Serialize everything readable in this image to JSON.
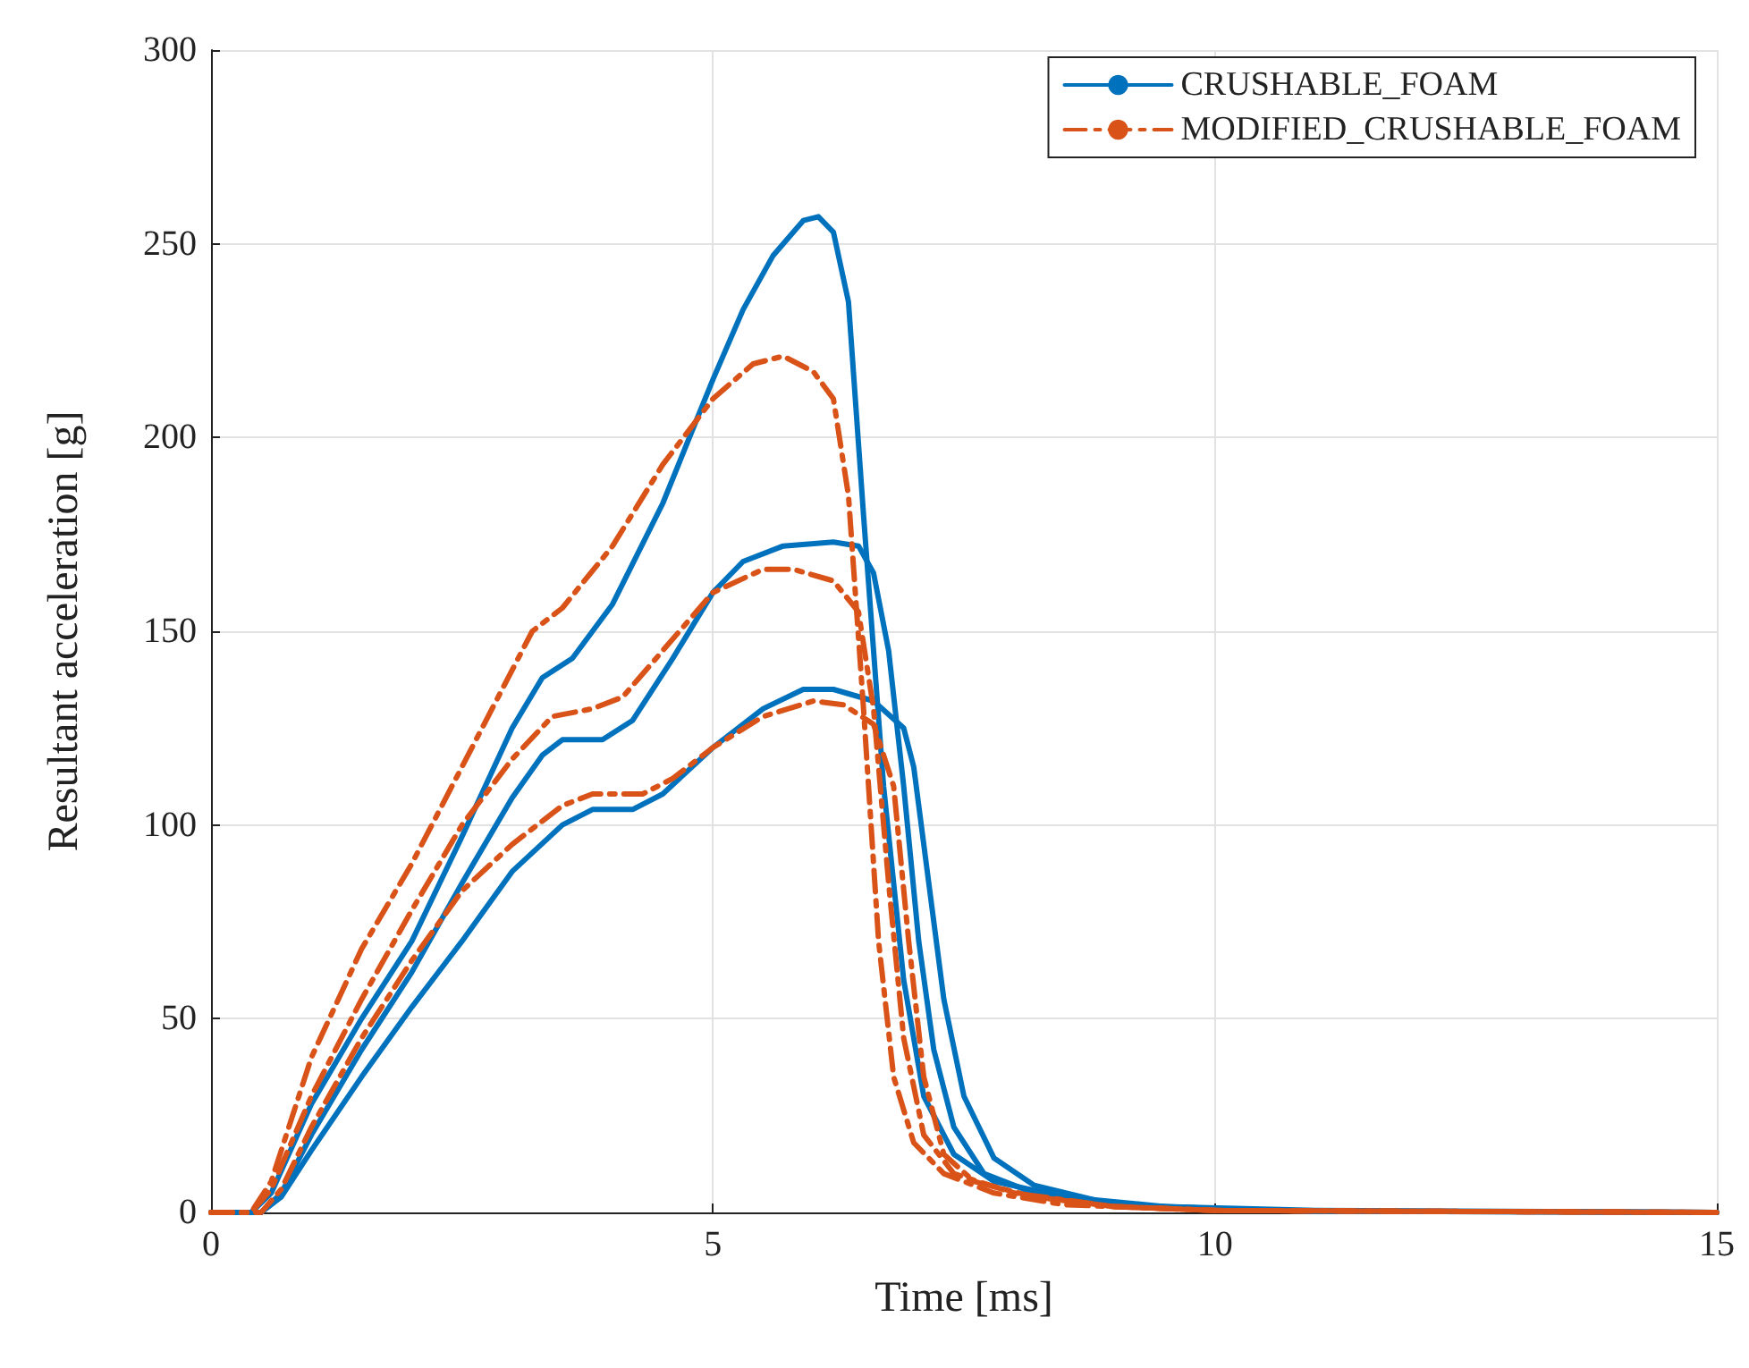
{
  "chart_data": {
    "type": "line",
    "xlabel": "Time [ms]",
    "ylabel": "Resultant acceleration [g]",
    "xlim": [
      0,
      15
    ],
    "xticks": [
      0,
      5,
      10,
      15
    ],
    "ylim": [
      0,
      300
    ],
    "yticks": [
      0,
      50,
      100,
      150,
      200,
      250,
      300
    ],
    "grid": true,
    "legend": "top right",
    "marker": "none",
    "series": [
      {
        "name": "CRUSHABLE_FOAM",
        "color": "#0072bd",
        "line_style": "solid",
        "x": [
          0,
          0.4,
          0.6,
          1,
          1.5,
          2,
          2.5,
          3,
          3.3,
          3.6,
          4,
          4.5,
          5,
          5.3,
          5.6,
          5.9,
          6.05,
          6.2,
          6.35,
          6.5,
          6.7,
          6.9,
          7.1,
          7.4,
          7.8,
          8.5,
          9.5,
          11,
          15
        ],
        "values": [
          0,
          0,
          5,
          28,
          50,
          70,
          97,
          125,
          138,
          143,
          157,
          183,
          215,
          233,
          247,
          256,
          257,
          253,
          235,
          180,
          110,
          60,
          30,
          15,
          8,
          4,
          1.5,
          0.5,
          0
        ]
      },
      {
        "color": "#0072bd",
        "line_style": "solid",
        "x": [
          0,
          0.5,
          0.7,
          1,
          1.5,
          2,
          2.5,
          3,
          3.3,
          3.5,
          3.9,
          4.2,
          4.6,
          5,
          5.3,
          5.7,
          6.2,
          6.45,
          6.6,
          6.75,
          6.9,
          7.05,
          7.2,
          7.4,
          7.7,
          8.2,
          9,
          10,
          11,
          15
        ],
        "values": [
          0,
          0,
          5,
          20,
          42,
          62,
          85,
          107,
          118,
          122,
          122,
          127,
          143,
          160,
          168,
          172,
          173,
          172,
          165,
          145,
          110,
          70,
          42,
          22,
          10,
          5,
          2,
          1,
          0.3,
          0
        ]
      },
      {
        "color": "#0072bd",
        "line_style": "solid",
        "x": [
          0,
          0.5,
          0.7,
          1,
          1.5,
          2,
          2.5,
          3,
          3.5,
          3.8,
          4.2,
          4.5,
          5,
          5.5,
          5.9,
          6.2,
          6.6,
          6.9,
          7,
          7.15,
          7.3,
          7.5,
          7.8,
          8.2,
          9,
          10,
          11,
          15
        ],
        "values": [
          0,
          0,
          4,
          16,
          35,
          53,
          70,
          88,
          100,
          104,
          104,
          108,
          120,
          130,
          135,
          135,
          132,
          125,
          115,
          85,
          55,
          30,
          14,
          7,
          2,
          1,
          0.3,
          0
        ]
      },
      {
        "name": "MODIFIED_CRUSHABLE_FOAM",
        "color": "#d95319",
        "line_style": "dashed",
        "x": [
          0,
          0.4,
          0.6,
          1,
          1.5,
          2,
          2.5,
          3,
          3.2,
          3.5,
          4,
          4.5,
          5,
          5.4,
          5.7,
          6,
          6.2,
          6.35,
          6.5,
          6.65,
          6.8,
          7,
          7.3,
          7.8,
          8.5,
          10,
          15
        ],
        "values": [
          0,
          0,
          8,
          40,
          68,
          90,
          115,
          140,
          150,
          156,
          172,
          193,
          210,
          219,
          221,
          217,
          210,
          185,
          130,
          70,
          35,
          18,
          10,
          5,
          2,
          0.5,
          0
        ]
      },
      {
        "color": "#d95319",
        "line_style": "dashed",
        "x": [
          0,
          0.4,
          0.6,
          1,
          1.5,
          2,
          2.5,
          3,
          3.4,
          3.8,
          4.1,
          4.5,
          5,
          5.5,
          5.8,
          6.2,
          6.45,
          6.6,
          6.75,
          6.9,
          7.1,
          7.4,
          8,
          9,
          10,
          15
        ],
        "values": [
          0,
          0,
          6,
          30,
          55,
          78,
          100,
          117,
          128,
          130,
          133,
          145,
          160,
          166,
          166,
          163,
          155,
          130,
          85,
          45,
          20,
          10,
          5,
          1.5,
          0.5,
          0
        ]
      },
      {
        "color": "#d95319",
        "line_style": "dashed",
        "x": [
          0,
          0.5,
          0.7,
          1,
          1.5,
          2,
          2.5,
          3,
          3.5,
          3.8,
          4.3,
          4.6,
          5,
          5.5,
          6,
          6.3,
          6.6,
          6.8,
          6.95,
          7.1,
          7.3,
          7.6,
          8.2,
          9,
          10,
          15
        ],
        "values": [
          0,
          0,
          6,
          22,
          45,
          65,
          83,
          95,
          105,
          108,
          108,
          112,
          120,
          128,
          132,
          131,
          126,
          110,
          70,
          35,
          15,
          8,
          4,
          1.5,
          0.5,
          0
        ]
      }
    ]
  }
}
